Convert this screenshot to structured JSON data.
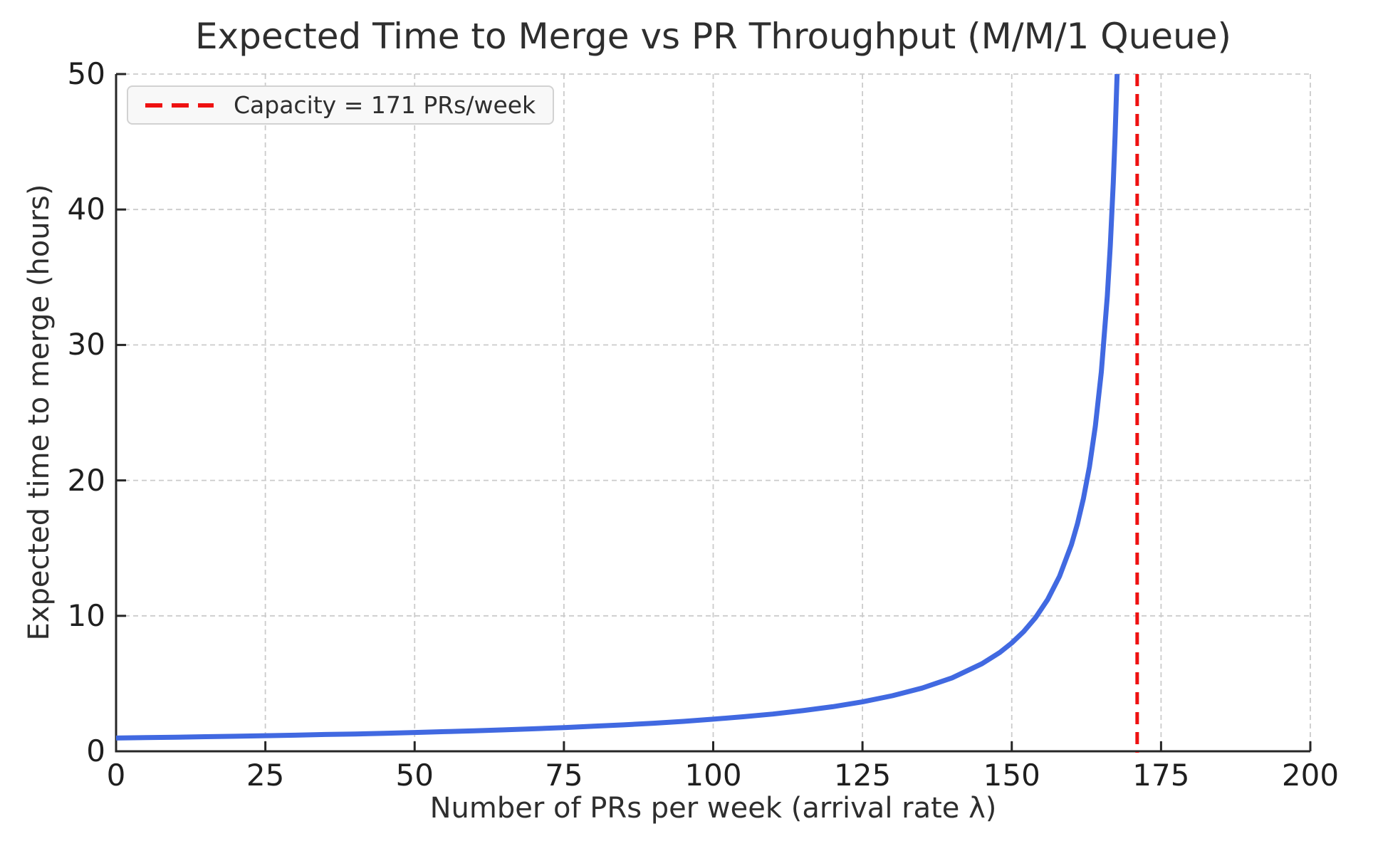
{
  "chart_data": {
    "type": "line",
    "title": "Expected Time to Merge vs PR Throughput (M/M/1 Queue)",
    "xlabel": "Number of PRs per week (arrival rate λ)",
    "ylabel": "Expected time to merge (hours)",
    "xlim": [
      0,
      200
    ],
    "ylim": [
      0,
      50
    ],
    "x_ticks": [
      0,
      25,
      50,
      75,
      100,
      125,
      150,
      175,
      200
    ],
    "y_ticks": [
      0,
      10,
      20,
      30,
      40,
      50
    ],
    "grid": true,
    "grid_style": "dashed",
    "legend": {
      "position": "upper-left",
      "label": "Capacity = 171 PRs/week",
      "line_color": "#ee1111",
      "line_style": "dashed"
    },
    "capacity_line": {
      "x": 171,
      "color": "#ee1111",
      "style": "dashed"
    },
    "series": [
      {
        "name": "expected_time_to_merge",
        "color": "#4169e1",
        "style": "solid",
        "points": [
          [
            0,
            0.98
          ],
          [
            5,
            1.01
          ],
          [
            10,
            1.04
          ],
          [
            15,
            1.08
          ],
          [
            20,
            1.11
          ],
          [
            25,
            1.15
          ],
          [
            30,
            1.19
          ],
          [
            35,
            1.24
          ],
          [
            40,
            1.28
          ],
          [
            45,
            1.33
          ],
          [
            50,
            1.39
          ],
          [
            55,
            1.45
          ],
          [
            60,
            1.51
          ],
          [
            65,
            1.58
          ],
          [
            70,
            1.66
          ],
          [
            75,
            1.75
          ],
          [
            80,
            1.85
          ],
          [
            85,
            1.95
          ],
          [
            90,
            2.07
          ],
          [
            95,
            2.21
          ],
          [
            100,
            2.37
          ],
          [
            105,
            2.55
          ],
          [
            110,
            2.75
          ],
          [
            115,
            3.0
          ],
          [
            120,
            3.29
          ],
          [
            125,
            3.65
          ],
          [
            130,
            4.1
          ],
          [
            135,
            4.67
          ],
          [
            140,
            5.42
          ],
          [
            145,
            6.46
          ],
          [
            148,
            7.3
          ],
          [
            150,
            8.0
          ],
          [
            152,
            8.84
          ],
          [
            154,
            9.88
          ],
          [
            156,
            11.2
          ],
          [
            158,
            12.92
          ],
          [
            160,
            15.27
          ],
          [
            161,
            16.8
          ],
          [
            162,
            18.67
          ],
          [
            163,
            21.0
          ],
          [
            164,
            24.0
          ],
          [
            165,
            28.0
          ],
          [
            166,
            33.6
          ],
          [
            166.5,
            37.33
          ],
          [
            167,
            42.0
          ],
          [
            167.3,
            45.41
          ],
          [
            167.6,
            49.41
          ],
          [
            167.64,
            50.0
          ]
        ]
      }
    ],
    "colors": {
      "curve": "#4169e1",
      "capacity": "#ee1111",
      "grid": "#cbcbcb",
      "spine": "#262626",
      "text": "#2e2e2e"
    }
  }
}
